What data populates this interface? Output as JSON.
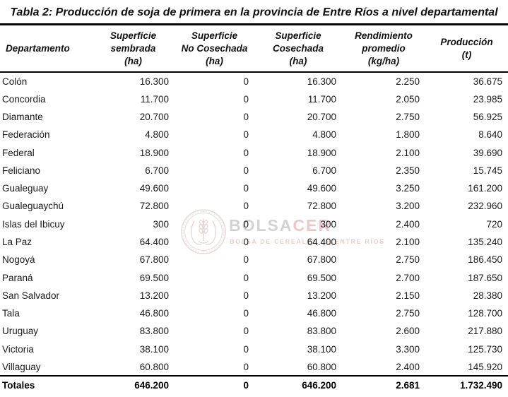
{
  "title": "Tabla 2: Producción de soja de primera en la provincia de Entre Ríos a nivel departamental",
  "table": {
    "columns": [
      {
        "label": "Departamento",
        "lines": [
          "Departamento"
        ]
      },
      {
        "label": "Superficie sembrada (ha)",
        "lines": [
          "Superficie",
          "sembrada",
          "(ha)"
        ]
      },
      {
        "label": "Superficie No Cosechada (ha)",
        "lines": [
          "Superficie",
          "No Cosechada",
          "(ha)"
        ]
      },
      {
        "label": "Superficie Cosechada (ha)",
        "lines": [
          "Superficie",
          "Cosechada",
          "(ha)"
        ]
      },
      {
        "label": "Rendimiento promedio (kg/ha)",
        "lines": [
          "Rendimiento",
          "promedio",
          "(kg/ha)"
        ]
      },
      {
        "label": "Producción (t)",
        "lines": [
          "Producción",
          "(t)"
        ]
      }
    ],
    "rows": [
      [
        "Colón",
        "16.300",
        "0",
        "16.300",
        "2.250",
        "36.675"
      ],
      [
        "Concordia",
        "11.700",
        "0",
        "11.700",
        "2.050",
        "23.985"
      ],
      [
        "Diamante",
        "20.700",
        "0",
        "20.700",
        "2.750",
        "56.925"
      ],
      [
        "Federación",
        "4.800",
        "0",
        "4.800",
        "1.800",
        "8.640"
      ],
      [
        "Federal",
        "18.900",
        "0",
        "18.900",
        "2.100",
        "39.690"
      ],
      [
        "Feliciano",
        "6.700",
        "0",
        "6.700",
        "2.350",
        "15.745"
      ],
      [
        "Gualeguay",
        "49.600",
        "0",
        "49.600",
        "3.250",
        "161.200"
      ],
      [
        "Gualeguaychú",
        "72.800",
        "0",
        "72.800",
        "3.200",
        "232.960"
      ],
      [
        "Islas del Ibicuy",
        "300",
        "0",
        "300",
        "2.400",
        "720"
      ],
      [
        "La Paz",
        "64.400",
        "0",
        "64.400",
        "2.100",
        "135.240"
      ],
      [
        "Nogoyá",
        "67.800",
        "0",
        "67.800",
        "2.750",
        "186.450"
      ],
      [
        "Paraná",
        "69.500",
        "0",
        "69.500",
        "2.700",
        "187.650"
      ],
      [
        "San Salvador",
        "13.200",
        "0",
        "13.200",
        "2.150",
        "28.380"
      ],
      [
        "Tala",
        "46.800",
        "0",
        "46.800",
        "2.750",
        "128.700"
      ],
      [
        "Uruguay",
        "83.800",
        "0",
        "83.800",
        "2.600",
        "217.880"
      ],
      [
        "Victoria",
        "38.100",
        "0",
        "38.100",
        "3.300",
        "125.730"
      ],
      [
        "Villaguay",
        "60.800",
        "0",
        "60.800",
        "2.400",
        "145.920"
      ]
    ],
    "totals": [
      "Totales",
      "646.200",
      "0",
      "646.200",
      "2.681",
      "1.732.490"
    ]
  },
  "watermark": {
    "brand_gray": "BOLSA",
    "brand_accent": "CER",
    "subtitle": "BOLSA DE CEREALES DE ENTRE RÍOS",
    "colors": {
      "brand_gray": "#d3d3d3",
      "brand_accent": "#edc7c7",
      "subtitle": "#eacfc9",
      "emblem": "#e9d9d7"
    }
  },
  "chart_data": {
    "type": "table",
    "title": "Tabla 2: Producción de soja de primera en la provincia de Entre Ríos a nivel departamental",
    "columns": [
      "Departamento",
      "Superficie sembrada (ha)",
      "Superficie No Cosechada (ha)",
      "Superficie Cosechada (ha)",
      "Rendimiento promedio (kg/ha)",
      "Producción (t)"
    ],
    "rows": [
      [
        "Colón",
        16300,
        0,
        16300,
        2250,
        36675
      ],
      [
        "Concordia",
        11700,
        0,
        11700,
        2050,
        23985
      ],
      [
        "Diamante",
        20700,
        0,
        20700,
        2750,
        56925
      ],
      [
        "Federación",
        4800,
        0,
        4800,
        1800,
        8640
      ],
      [
        "Federal",
        18900,
        0,
        18900,
        2100,
        39690
      ],
      [
        "Feliciano",
        6700,
        0,
        6700,
        2350,
        15745
      ],
      [
        "Gualeguay",
        49600,
        0,
        49600,
        3250,
        161200
      ],
      [
        "Gualeguaychú",
        72800,
        0,
        72800,
        3200,
        232960
      ],
      [
        "Islas del Ibicuy",
        300,
        0,
        300,
        2400,
        720
      ],
      [
        "La Paz",
        64400,
        0,
        64400,
        2100,
        135240
      ],
      [
        "Nogoyá",
        67800,
        0,
        67800,
        2750,
        186450
      ],
      [
        "Paraná",
        69500,
        0,
        69500,
        2700,
        187650
      ],
      [
        "San Salvador",
        13200,
        0,
        13200,
        2150,
        28380
      ],
      [
        "Tala",
        46800,
        0,
        46800,
        2750,
        128700
      ],
      [
        "Uruguay",
        83800,
        0,
        83800,
        2600,
        217880
      ],
      [
        "Victoria",
        38100,
        0,
        38100,
        3300,
        125730
      ],
      [
        "Villaguay",
        60800,
        0,
        60800,
        2400,
        145920
      ]
    ],
    "totals": [
      "Totales",
      646200,
      0,
      646200,
      2681,
      1732490
    ]
  }
}
